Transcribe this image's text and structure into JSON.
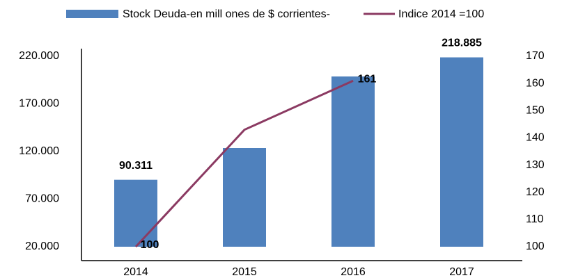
{
  "chart_data": {
    "type": "bar",
    "categories": [
      "2014",
      "2015",
      "2016",
      "2017"
    ],
    "series": [
      {
        "name": "Stock Deuda-en mill ones de $ corrientes-",
        "type": "bar",
        "color": "#4f81bd",
        "values": [
          90311,
          123650,
          198800,
          218885
        ],
        "value_labels": [
          "90.311",
          null,
          null,
          "218.885"
        ]
      },
      {
        "name": "Indice 2014 =100",
        "type": "line",
        "axis": "y2",
        "color": "#8b3a62",
        "values": [
          100,
          143,
          161,
          null
        ],
        "value_labels": [
          "100",
          null,
          "161",
          null
        ]
      }
    ],
    "ylim": [
      20000,
      220000
    ],
    "yticks": [
      {
        "value": 20000,
        "label": "20.000"
      },
      {
        "value": 70000,
        "label": "70.000"
      },
      {
        "value": 120000,
        "label": "120.000"
      },
      {
        "value": 170000,
        "label": "170.000"
      },
      {
        "value": 220000,
        "label": "220.000"
      }
    ],
    "y2lim": [
      100,
      170
    ],
    "y2ticks": [
      100,
      110,
      120,
      130,
      140,
      150,
      160,
      170
    ],
    "legend": "top"
  }
}
